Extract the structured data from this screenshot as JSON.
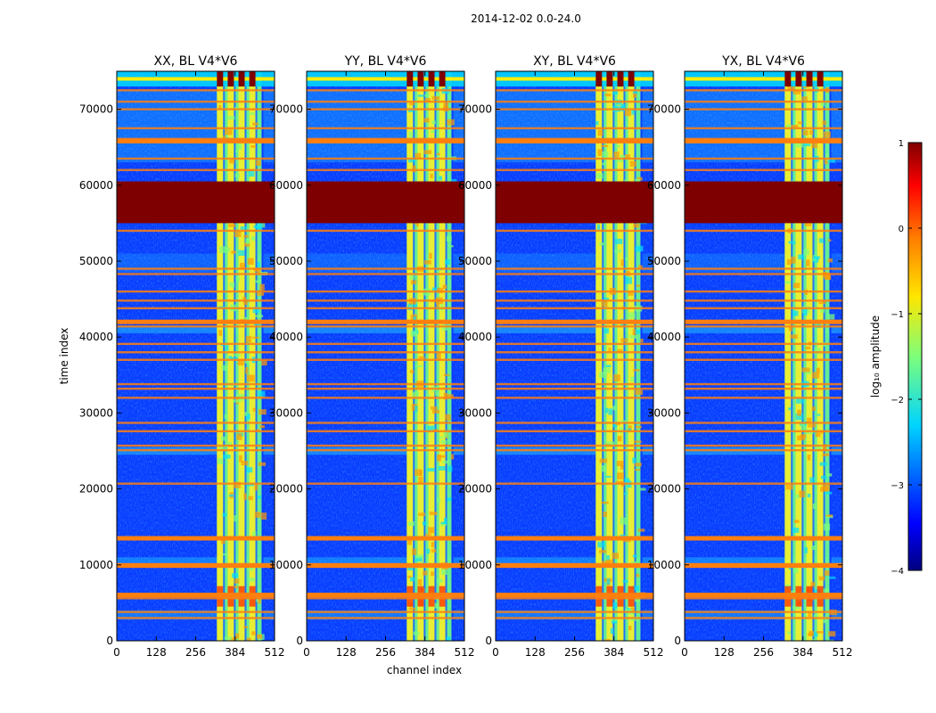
{
  "suptitle": "2014-12-02 0.0-24.0",
  "colors": {
    "saturated": "#7f0000",
    "rfi_line": "#ff7f0e",
    "background_noise": "#0a3cff"
  },
  "chart_data": {
    "type": "heatmap",
    "shared": {
      "xlabel": "channel index",
      "ylabel": "time index",
      "xlim": [
        0,
        512
      ],
      "ylim": [
        0,
        75000
      ],
      "xticks": [
        0,
        128,
        256,
        384,
        512
      ],
      "yticks": [
        0,
        10000,
        20000,
        30000,
        40000,
        50000,
        60000,
        70000
      ],
      "colormap": "jet",
      "color_scale": "log10"
    },
    "colorbar": {
      "label": "log₁₀ amplitude",
      "range": [
        -4,
        1
      ],
      "ticks": [
        -4,
        -3,
        -2,
        -1,
        0,
        1
      ]
    },
    "panels": [
      {
        "title": "XX, BL V4*V6",
        "show_ylabel": true
      },
      {
        "title": "YY, BL V4*V6",
        "show_ylabel": false
      },
      {
        "title": "XY, BL V4*V6",
        "show_ylabel": false
      },
      {
        "title": "YX, BL V4*V6",
        "show_ylabel": false
      }
    ],
    "features": {
      "saturated_block_time": [
        55000,
        60500
      ],
      "top_band_time": [
        73000,
        75000
      ],
      "rfi_channel_range": [
        325,
        470
      ],
      "rfi_channel_columns": [
        [
          325,
          345
        ],
        [
          360,
          380
        ],
        [
          395,
          415
        ],
        [
          430,
          450
        ]
      ],
      "horizontal_flag_lines_time": [
        3000,
        3800,
        5600,
        6200,
        9800,
        10100,
        13500,
        20700,
        25100,
        25700,
        27600,
        28700,
        32000,
        33200,
        33800,
        37000,
        38000,
        39100,
        41400,
        42000,
        43800,
        44800,
        46000,
        48300,
        49000,
        54000,
        62000,
        63500,
        65700,
        66100,
        67500,
        70000,
        71000,
        72500,
        74000
      ]
    }
  }
}
